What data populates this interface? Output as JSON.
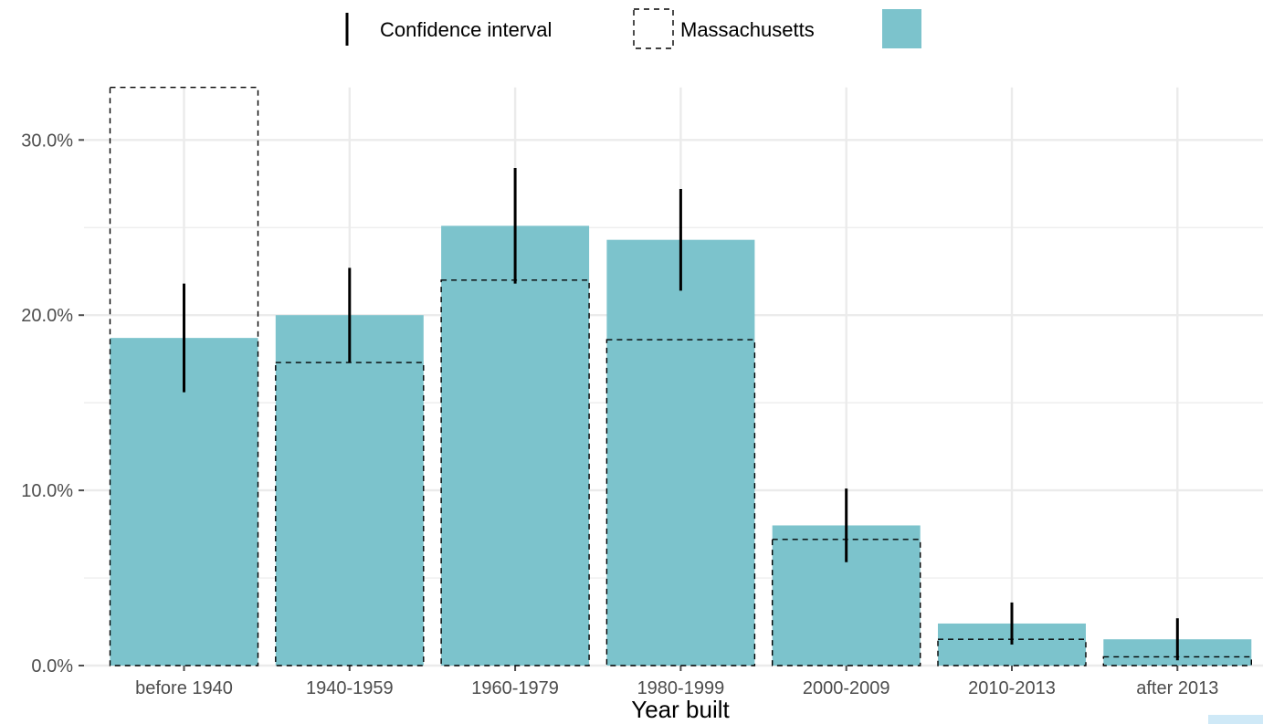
{
  "legend": {
    "ci_label": "Confidence interval",
    "reference_label": "Massachusetts",
    "fill_label": ""
  },
  "colors": {
    "bar_fill": "#7cc3cc",
    "grid": "#ebebeb",
    "tick": "#4d4d4d",
    "error_bar": "#000000",
    "reference_outline": "#000000"
  },
  "chart_data": {
    "type": "bar",
    "title": "",
    "xlabel": "Year built",
    "ylabel": "",
    "categories": [
      "before 1940",
      "1940-1959",
      "1960-1979",
      "1980-1999",
      "2000-2009",
      "2010-2013",
      "after 2013"
    ],
    "ylim": [
      0,
      0.33
    ],
    "yticks": [
      0,
      0.1,
      0.2,
      0.3
    ],
    "ytick_labels": [
      "0.0%",
      "10.0%",
      "20.0%",
      "30.0%"
    ],
    "grid": true,
    "legend_position": "top",
    "series": [
      {
        "values": [
          0.187,
          0.2,
          0.251,
          0.243,
          0.08,
          0.024,
          0.015
        ],
        "ci_low": [
          0.156,
          0.173,
          0.218,
          0.214,
          0.059,
          0.012,
          0.003
        ],
        "ci_high": [
          0.218,
          0.227,
          0.284,
          0.272,
          0.101,
          0.036,
          0.027
        ]
      },
      {
        "name": "Massachusetts",
        "style": "dashed-outline",
        "values": [
          0.33,
          0.173,
          0.22,
          0.186,
          0.072,
          0.015,
          0.005
        ]
      }
    ]
  }
}
